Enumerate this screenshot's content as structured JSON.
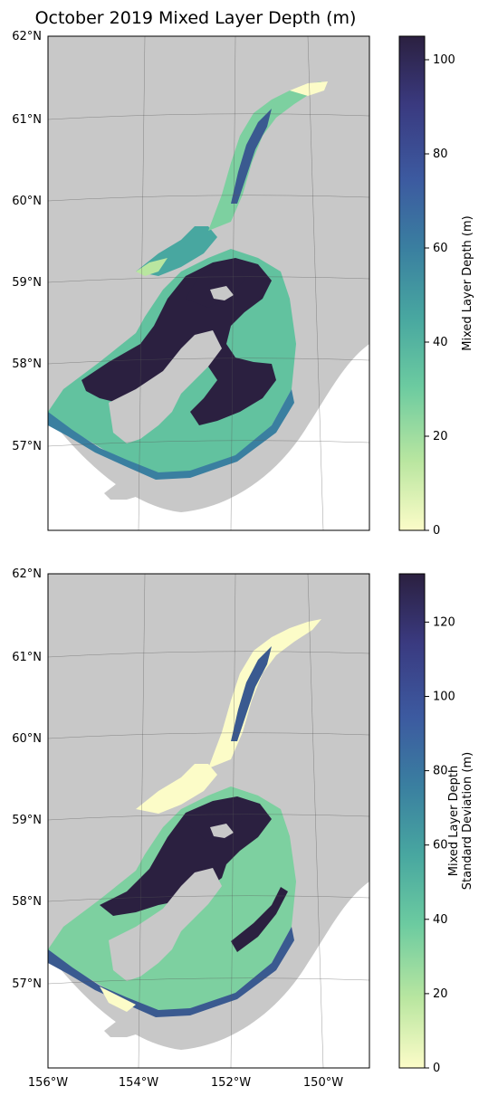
{
  "title": "October 2019 Mixed Layer Depth (m)",
  "colors": {
    "land": "#c8c8c8",
    "background": "#ffffff",
    "gridline": "#555555",
    "frame": "#000000",
    "colormap_stops": [
      "#fcfcc8",
      "#b9e6a0",
      "#6ccba0",
      "#48a7a0",
      "#3a7fa0",
      "#3c5aa0",
      "#3a3a80",
      "#2b2040"
    ]
  },
  "colormap": "deep",
  "panels": [
    {
      "name": "mixed-layer-depth",
      "lat_ticks": [
        "62°N",
        "61°N",
        "60°N",
        "59°N",
        "58°N",
        "57°N"
      ],
      "lon_ticks": [],
      "colorbar": {
        "label_lines": [
          "Mixed Layer Depth (m)"
        ],
        "ticks": [
          "0",
          "20",
          "40",
          "60",
          "80",
          "100"
        ],
        "tick_values": [
          0,
          20,
          40,
          60,
          80,
          100
        ],
        "range": [
          0,
          105
        ]
      }
    },
    {
      "name": "mixed-layer-depth-std",
      "lat_ticks": [
        "62°N",
        "61°N",
        "60°N",
        "59°N",
        "58°N",
        "57°N"
      ],
      "lon_ticks": [
        "156°W",
        "154°W",
        "152°W",
        "150°W"
      ],
      "colorbar": {
        "label_lines": [
          "Mixed Layer Depth",
          "Standard Deviation (m)"
        ],
        "ticks": [
          "0",
          "20",
          "40",
          "60",
          "80",
          "100",
          "120"
        ],
        "tick_values": [
          0,
          20,
          40,
          60,
          80,
          100,
          120
        ],
        "range": [
          0,
          133
        ]
      }
    }
  ]
}
